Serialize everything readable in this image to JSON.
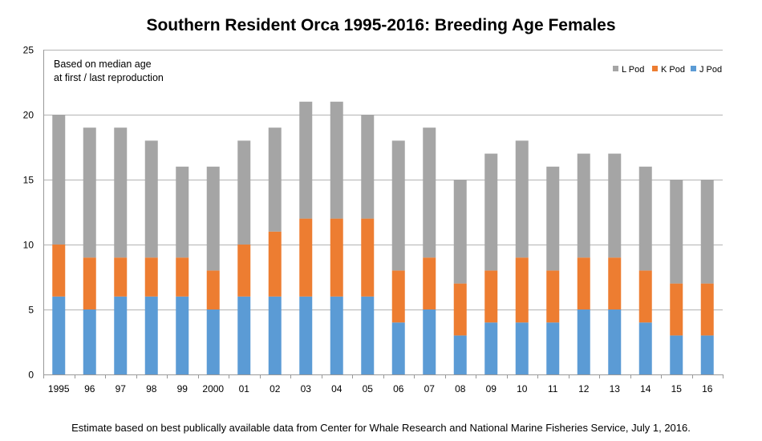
{
  "chart_data": {
    "type": "bar",
    "stacked": true,
    "title": "Southern Resident Orca 1995-2016: Breeding Age Females",
    "note_lines": [
      "Based on median age",
      "at first / last reproduction"
    ],
    "categories": [
      "1995",
      "96",
      "97",
      "98",
      "99",
      "2000",
      "01",
      "02",
      "03",
      "04",
      "05",
      "06",
      "07",
      "08",
      "09",
      "10",
      "11",
      "12",
      "13",
      "14",
      "15",
      "16"
    ],
    "series": [
      {
        "name": "J Pod",
        "color": "#5b9bd5",
        "values": [
          6,
          5,
          6,
          6,
          6,
          5,
          6,
          6,
          6,
          6,
          6,
          4,
          5,
          3,
          4,
          4,
          4,
          5,
          5,
          4,
          3,
          3
        ]
      },
      {
        "name": "K Pod",
        "color": "#ed7d31",
        "values": [
          4,
          4,
          3,
          3,
          3,
          3,
          4,
          5,
          6,
          6,
          6,
          4,
          4,
          4,
          4,
          5,
          4,
          4,
          4,
          4,
          4,
          4
        ]
      },
      {
        "name": "L Pod",
        "color": "#a5a5a5",
        "values": [
          10,
          10,
          10,
          9,
          7,
          8,
          8,
          8,
          9,
          9,
          8,
          10,
          10,
          8,
          9,
          9,
          8,
          8,
          8,
          8,
          8,
          8
        ]
      }
    ],
    "legend_order": [
      "L Pod",
      "K Pod",
      "J Pod"
    ],
    "legend_position": "top-right",
    "ylim": [
      0,
      25
    ],
    "yticks": [
      0,
      5,
      10,
      15,
      20,
      25
    ],
    "grid": true,
    "xlabel": "",
    "ylabel": ""
  },
  "footnote": "Estimate based on best publically available data from Center for Whale Research and National Marine Fisheries Service, July 1, 2016."
}
